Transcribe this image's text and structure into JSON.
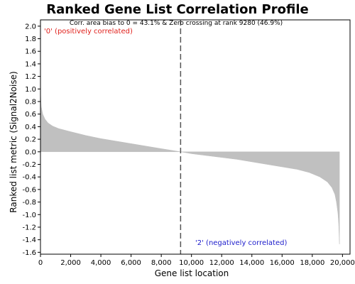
{
  "chart_data": {
    "type": "area",
    "title": "Ranked Gene List Correlation Profile",
    "xlabel": "Gene list location",
    "ylabel": "Ranked list metric (Signal2Noise)",
    "subtitle": "Corr. area bias to 0 = 43.1% & Zero crossing at rank 9280 (46.9%)",
    "annotations": {
      "positive": "'0' (positively correlated)",
      "negative": "'2' (negatively correlated)"
    },
    "xlim": [
      0,
      20500
    ],
    "ylim": [
      -1.63,
      2.1
    ],
    "x_ticks": [
      0,
      2000,
      4000,
      6000,
      8000,
      10000,
      12000,
      14000,
      16000,
      18000,
      20000
    ],
    "x_tick_labels": [
      "0",
      "2,000",
      "4,000",
      "6,000",
      "8,000",
      "10,000",
      "12,000",
      "14,000",
      "16,000",
      "18,000",
      "20,000"
    ],
    "y_ticks": [
      2.0,
      1.8,
      1.6,
      1.4,
      1.2,
      1.0,
      0.8,
      0.6,
      0.4,
      0.2,
      0.0,
      -0.2,
      -0.4,
      -0.6,
      -0.8,
      -1.0,
      -1.2,
      -1.4,
      -1.6
    ],
    "y_tick_labels": [
      "2.0",
      "1.8",
      "1.6",
      "1.4",
      "1.2",
      "1.0",
      "0.8",
      "0.6",
      "0.4",
      "0.2",
      "0.0",
      "-0.2",
      "-0.4",
      "-0.6",
      "-0.8",
      "-1.0",
      "-1.2",
      "-1.4",
      "-1.6"
    ],
    "zero_crossing_rank": 9280,
    "x": [
      0,
      50,
      150,
      300,
      500,
      800,
      1200,
      2000,
      3000,
      4000,
      5000,
      6000,
      7000,
      8000,
      9280,
      10000,
      11000,
      12000,
      13000,
      14000,
      15000,
      16000,
      17000,
      17800,
      18500,
      19000,
      19300,
      19500,
      19600,
      19700,
      19750,
      19800
    ],
    "y": [
      0.95,
      0.72,
      0.6,
      0.52,
      0.46,
      0.41,
      0.37,
      0.32,
      0.26,
      0.21,
      0.17,
      0.13,
      0.09,
      0.05,
      0.0,
      -0.03,
      -0.06,
      -0.09,
      -0.12,
      -0.16,
      -0.2,
      -0.24,
      -0.28,
      -0.33,
      -0.4,
      -0.48,
      -0.57,
      -0.68,
      -0.8,
      -0.98,
      -1.15,
      -1.47
    ],
    "grid": false,
    "fill_color": "#c0c0c0",
    "positive_color": "#e0201b",
    "negative_color": "#2020cc",
    "line_color": "#555555"
  }
}
